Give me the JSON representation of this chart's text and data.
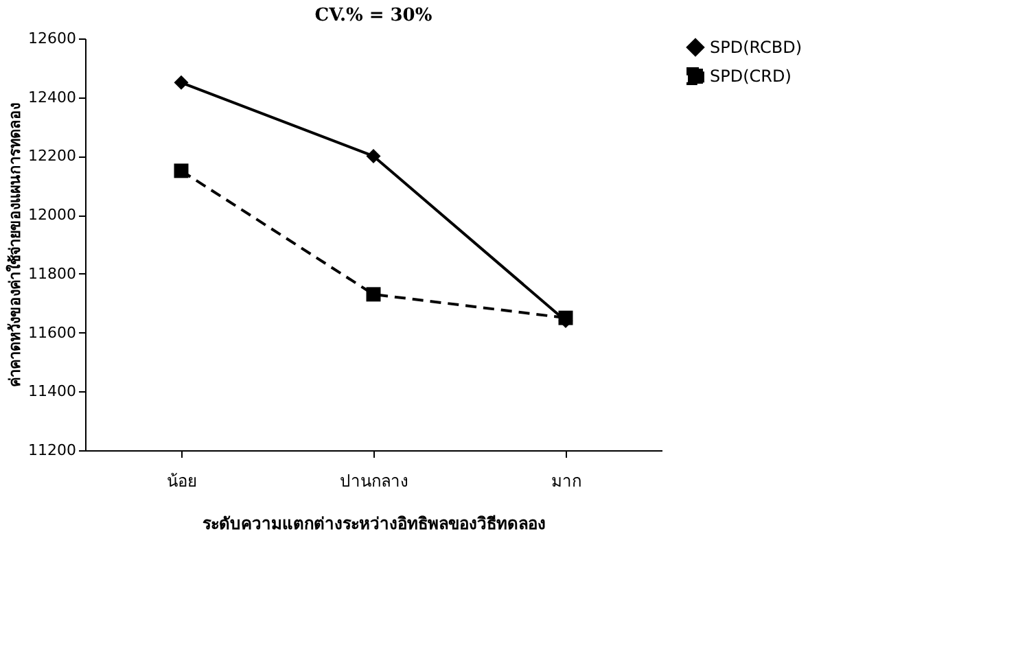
{
  "chart_data": {
    "type": "line",
    "title": "CV.% = 30%",
    "xlabel": "ระดับความแตกต่างระหว่างอิทธิพลของวิธีทดลอง",
    "ylabel": "ค่าคาดหวังของค่าใช้จ่ายของแผนการทดลอง",
    "categories": [
      "น้อย",
      "ปานกลาง",
      "มาก"
    ],
    "series": [
      {
        "name": "SPD(RCBD)",
        "color": "#000000",
        "values": [
          12450,
          12200,
          11640
        ],
        "marker": "diamond",
        "line_style": "solid"
      },
      {
        "name": "SPD(CRD)",
        "color": "#000000",
        "values": [
          12150,
          11730,
          11650
        ],
        "marker": "square",
        "line_style": "dashed"
      }
    ],
    "ylim": [
      11200,
      12600
    ],
    "yticks": [
      11200,
      11400,
      11600,
      11800,
      12000,
      12200,
      12400,
      12600
    ],
    "grid": false,
    "legend": "right"
  }
}
